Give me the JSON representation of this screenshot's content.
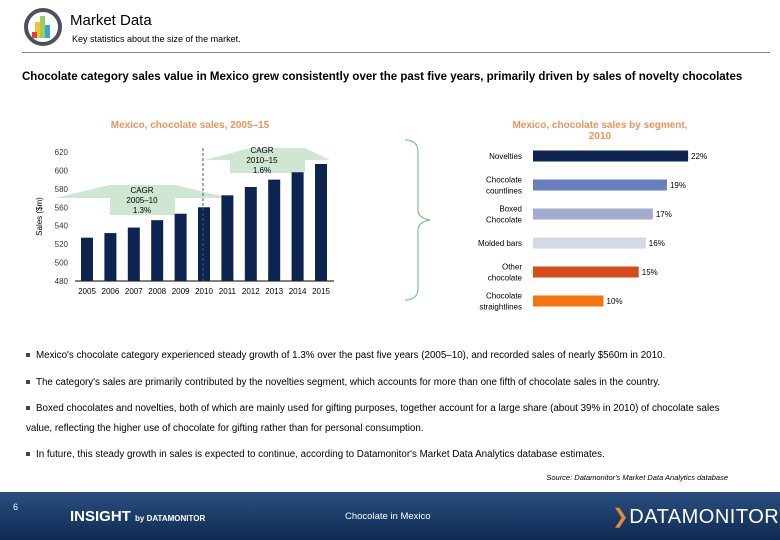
{
  "header": {
    "title": "Market Data",
    "subtitle": "Key statistics about the size of the market."
  },
  "headline": "Chocolate category sales value in Mexico grew consistently over the past five years, primarily driven by sales of novelty chocolates",
  "chart_data": [
    {
      "type": "bar",
      "title": "Mexico, chocolate sales, 2005–15",
      "ylabel": "Sales ($m)",
      "ylim": [
        480,
        620
      ],
      "yticks": [
        480,
        500,
        520,
        540,
        560,
        580,
        600,
        620
      ],
      "categories": [
        "2005",
        "2006",
        "2007",
        "2008",
        "2009",
        "2010",
        "2011",
        "2012",
        "2013",
        "2014",
        "2015"
      ],
      "values": [
        527,
        532,
        538,
        546,
        553,
        560,
        573,
        582,
        590,
        598,
        607
      ],
      "color": "#0d2350",
      "annotations": [
        {
          "label": [
            "CAGR",
            "2005–10",
            "1.3%"
          ]
        },
        {
          "label": [
            "CAGR",
            "2010–15",
            "1.6%"
          ]
        }
      ]
    },
    {
      "type": "bar",
      "orientation": "horizontal",
      "title": "Mexico, chocolate sales by segment, 2010",
      "categories": [
        "Novelties",
        "Chocolate countlines",
        "Boxed Chocolate",
        "Molded bars",
        "Other chocolate",
        "Chocolate straightlines"
      ],
      "values": [
        22,
        19,
        17,
        16,
        15,
        10
      ],
      "labels": [
        "22%",
        "19%",
        "17%",
        "16%",
        "15%",
        "10%"
      ],
      "colors": [
        "#0d2350",
        "#6a7fc0",
        "#a3acd0",
        "#d5d9e6",
        "#d64a1c",
        "#f7730f"
      ]
    }
  ],
  "bullets": [
    "Mexico's chocolate category experienced steady growth of 1.3% over the past five years (2005–10), and recorded sales of nearly $560m in 2010.",
    "The category's sales are primarily contributed by the novelties segment, which accounts for more than one fifth of chocolate sales in the country.",
    "Boxed chocolates and novelties, both of which are mainly used for gifting purposes, together account for a large share (about 39% in 2010) of chocolate sales value, reflecting the higher use of chocolate for gifting rather than for personal consumption.",
    "In future, this steady growth in sales is expected to continue, according to Datamonitor's Market Data Analytics database estimates."
  ],
  "source": "Source: Datamonitor's Market Data Analytics database",
  "footer": {
    "page": "6",
    "brand": "INSIGHT",
    "brand_by": "by DATAMONITOR",
    "doc_title": "Chocolate in Mexico",
    "logo": "DATAMONITOR"
  }
}
